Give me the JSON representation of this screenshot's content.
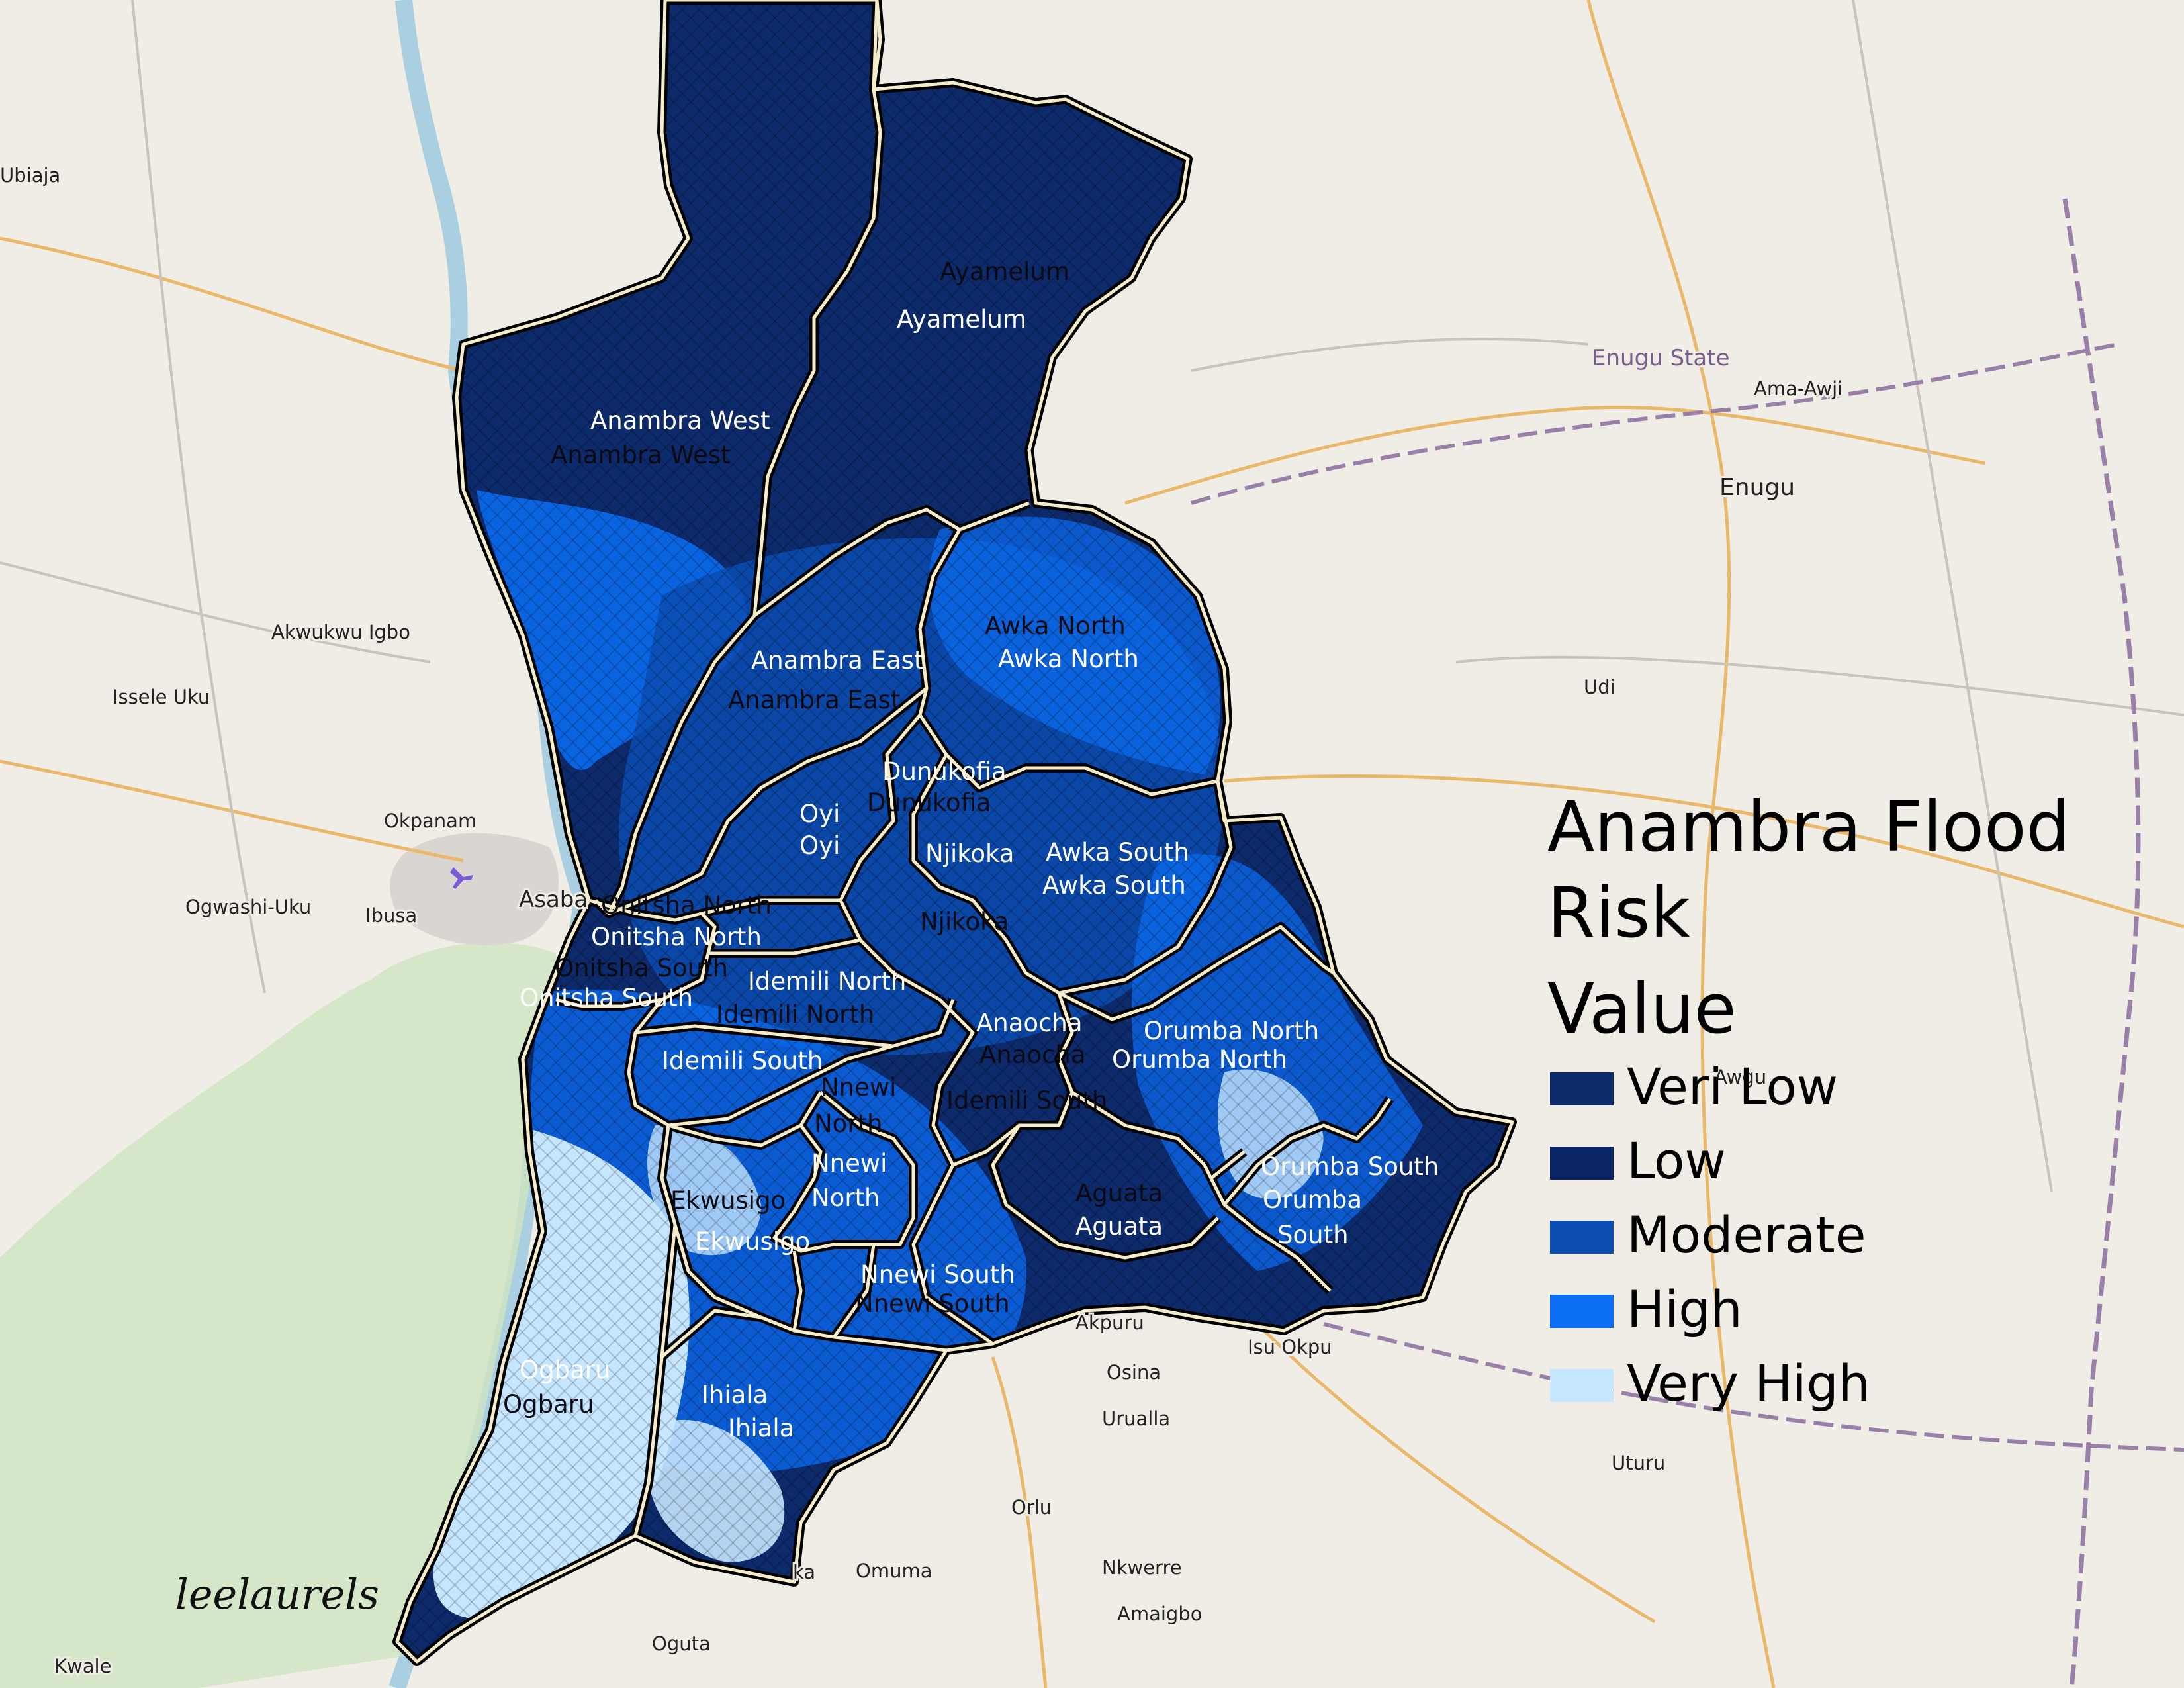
{
  "legend": {
    "title_lines": [
      "Anambra Flood",
      "Risk",
      "Value"
    ],
    "items": [
      {
        "label": "Veri Low",
        "color": "#0d2a6b"
      },
      {
        "label": "Low",
        "color": "#0b2466"
      },
      {
        "label": "Moderate",
        "color": "#0a4cb0"
      },
      {
        "label": "High",
        "color": "#0b6ef5"
      },
      {
        "label": "Very High",
        "color": "#c6e6ff"
      }
    ]
  },
  "colors": {
    "very_low": "#0d2a6b",
    "low": "#0b2466",
    "moderate": "#0a4cb0",
    "high": "#0b6ef5",
    "very_high": "#c6e6ff",
    "basemap": "#f0ede6",
    "boundary": "#f5eccb"
  },
  "lga_labels": {
    "ayamelum_1": "Ayamelum",
    "ayamelum_2": "Ayamelum",
    "anambra_west_1": "Anambra West",
    "anambra_west_2": "Anambra West",
    "anambra_east_1": "Anambra East",
    "anambra_east_2": "Anambra East",
    "awka_north_1": "Awka North",
    "awka_north_2": "Awka North",
    "dunukofia_1": "Dunukofia",
    "dunukofia_2": "Dunukofia",
    "oyi_1": "Oyi",
    "oyi_2": "Oyi",
    "njikoka_1": "Njikoka",
    "njikoka_2": "Njikoka",
    "awka_south_1": "Awka South",
    "awka_south_2": "Awka South",
    "onitsha_north_1": "Onitsha North",
    "onitsha_north_2": "Onitsha North",
    "onitsha_south_1": "Onitsha South",
    "onitsha_south_2": "Onitsha South",
    "idemili_north_1": "Idemili North",
    "idemili_north_2": "Idemili North",
    "anaocha_1": "Anaocha",
    "anaocha_2": "Anaocha",
    "orumba_north_1": "Orumba North",
    "orumba_north_2": "Orumba North",
    "idemili_south_1": "Idemili South",
    "idemili_south_2": "Idemili South",
    "nnewi_north_a": "Nnewi",
    "nnewi_north_b": "North",
    "nnewi_north_c": "Nnewi",
    "nnewi_north_d": "North",
    "orumba_south_1": "Orumba South",
    "orumba_south_2": "Orumba",
    "orumba_south_3": "South",
    "aguata_1": "Aguata",
    "aguata_2": "Aguata",
    "ekwusigo_1": "Ekwusigo",
    "ekwusigo_2": "Ekwusigo",
    "nnewi_south_1": "Nnewi South",
    "nnewi_south_2": "Nnewi South",
    "ogbaru_1": "Ogbaru",
    "ogbaru_2": "Ogbaru",
    "ihiala_1": "Ihiala",
    "ihiala_2": "Ihiala"
  },
  "places": {
    "ubiaja": "Ubiaja",
    "akwukwu_igbo": "Akwukwu Igbo",
    "issele_uku": "Issele Uku",
    "okpanam": "Okpanam",
    "ogwashi_uku": "Ogwashi-Uku",
    "ibusa": "Ibusa",
    "asaba": "Asaba",
    "enugu_state": "Enugu State",
    "ama_awji": "Ama-Awji",
    "enugu": "Enugu",
    "udi": "Udi",
    "awgu": "Awgu",
    "akpuru": "Akpuru",
    "isu_okpu": "Isu Okpu",
    "osina": "Osina",
    "urualla": "Urualla",
    "uturu": "Uturu",
    "orlu": "Orlu",
    "omuma": "Omuma",
    "ka": "ka",
    "nkwerre": "Nkwerre",
    "amaigbo": "Amaigbo",
    "oguta": "Oguta",
    "kwale": "Kwale"
  },
  "signature": "leelaurels"
}
